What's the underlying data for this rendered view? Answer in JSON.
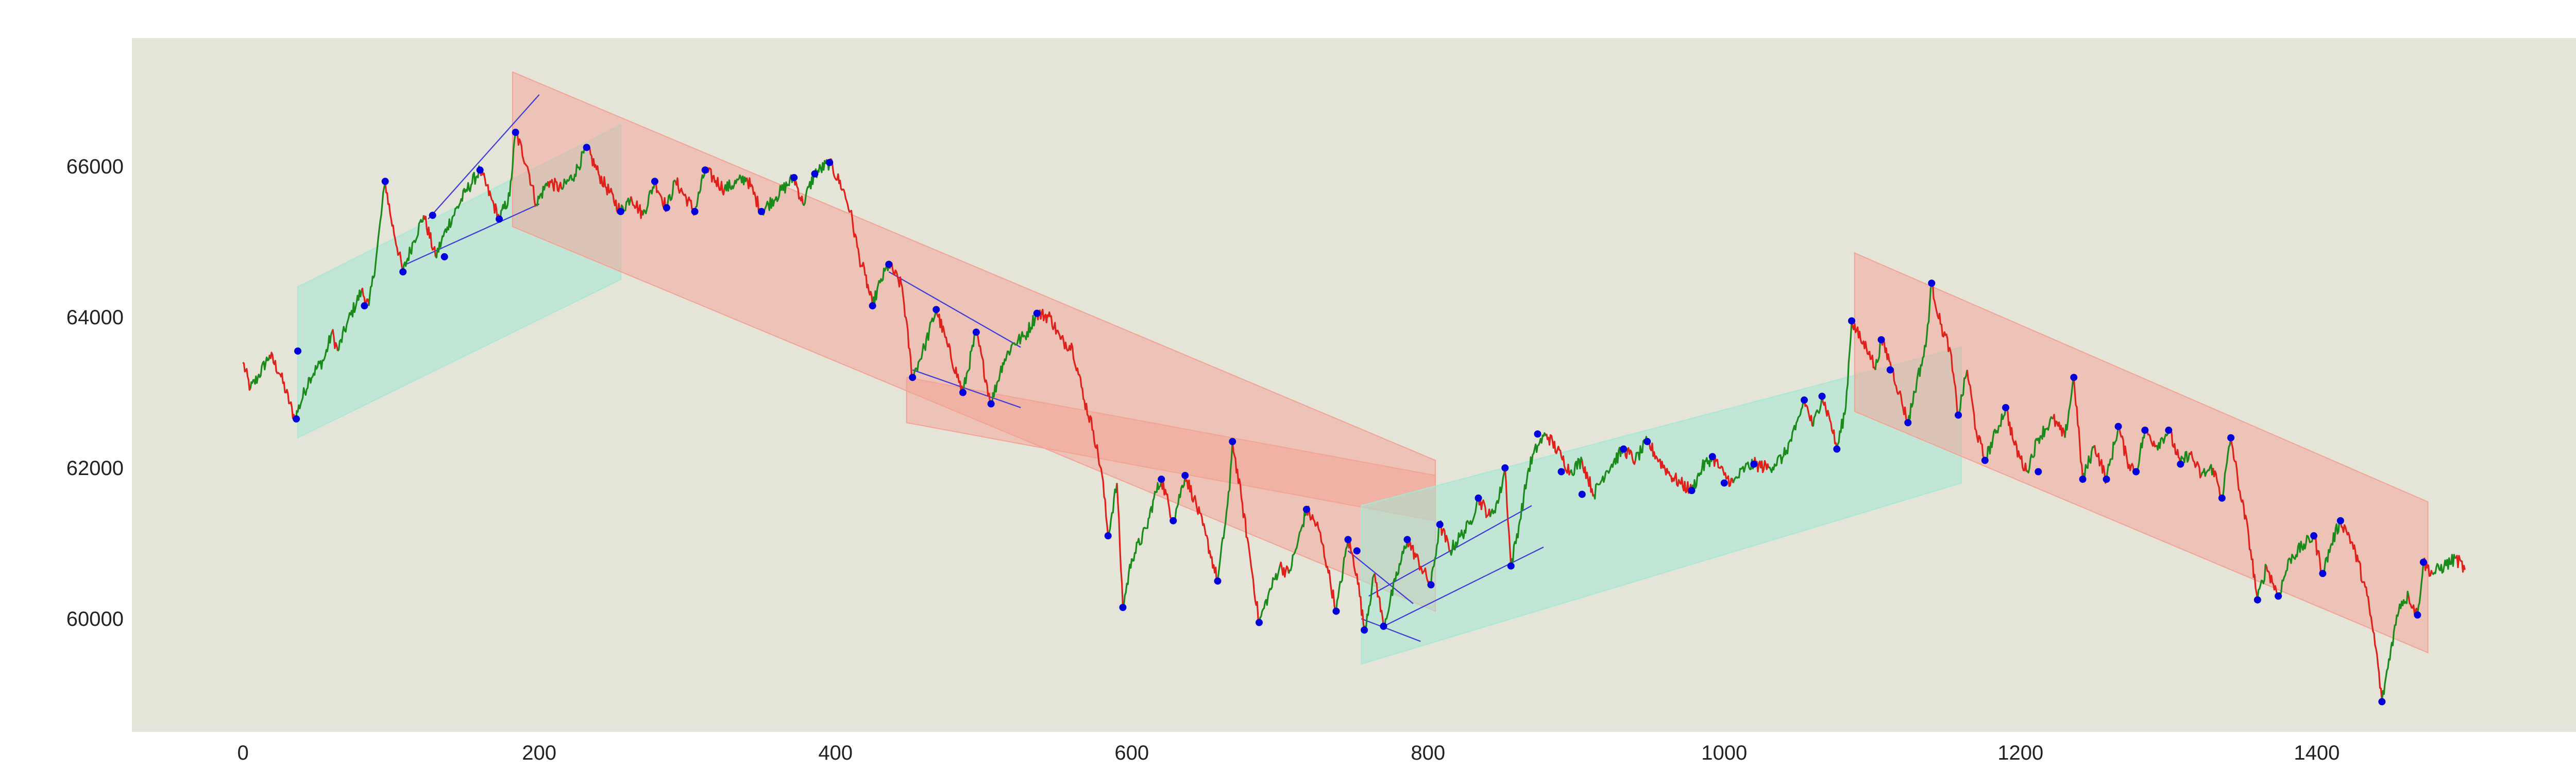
{
  "chart_data": {
    "type": "line",
    "subtype": "price series with swing-point markers and trend channels",
    "title": "",
    "xlabel": "",
    "ylabel": "",
    "xlim": [
      -75,
      1575
    ],
    "ylim": [
      58500,
      67700
    ],
    "xticks": [
      0,
      200,
      400,
      600,
      800,
      1000,
      1200,
      1400
    ],
    "yticks": [
      60000,
      62000,
      64000,
      66000
    ],
    "xtick_labels": [
      "0",
      "200",
      "400",
      "600",
      "800",
      "1000",
      "1200",
      "1400"
    ],
    "ytick_labels": [
      "60000",
      "62000",
      "64000",
      "66000"
    ],
    "grid": false,
    "legend": "none",
    "colors": {
      "plot_background": "#e4e4d8",
      "up_color": "#1a8a1a",
      "down_color": "#e0201a",
      "marker_color": "#0000dd",
      "pattern_line_color": "#3a3ad8",
      "bull_channel_fill": "#a6e8d6",
      "bear_channel_fill": "#f4a294"
    },
    "price_path": [
      [
        0,
        63400
      ],
      [
        5,
        63050
      ],
      [
        10,
        63200
      ],
      [
        18,
        63500
      ],
      [
        25,
        63250
      ],
      [
        35,
        62650
      ],
      [
        45,
        63200
      ],
      [
        55,
        63450
      ],
      [
        60,
        63800
      ],
      [
        64,
        63550
      ],
      [
        70,
        63900
      ],
      [
        80,
        64350
      ],
      [
        85,
        64150
      ],
      [
        90,
        64800
      ],
      [
        96,
        65800
      ],
      [
        100,
        65300
      ],
      [
        108,
        64600
      ],
      [
        115,
        65000
      ],
      [
        122,
        65350
      ],
      [
        130,
        64800
      ],
      [
        138,
        65200
      ],
      [
        150,
        65650
      ],
      [
        160,
        65950
      ],
      [
        168,
        65550
      ],
      [
        173,
        65300
      ],
      [
        180,
        65600
      ],
      [
        184,
        66450
      ],
      [
        192,
        66000
      ],
      [
        198,
        65500
      ],
      [
        206,
        65800
      ],
      [
        215,
        65700
      ],
      [
        224,
        65900
      ],
      [
        232,
        66250
      ],
      [
        240,
        65900
      ],
      [
        255,
        65400
      ],
      [
        262,
        65600
      ],
      [
        270,
        65350
      ],
      [
        278,
        65800
      ],
      [
        286,
        65450
      ],
      [
        292,
        65800
      ],
      [
        305,
        65400
      ],
      [
        312,
        65950
      ],
      [
        325,
        65700
      ],
      [
        340,
        65850
      ],
      [
        350,
        65400
      ],
      [
        360,
        65600
      ],
      [
        372,
        65850
      ],
      [
        378,
        65500
      ],
      [
        386,
        65900
      ],
      [
        396,
        66050
      ],
      [
        405,
        65700
      ],
      [
        410,
        65400
      ],
      [
        416,
        64800
      ],
      [
        420,
        64550
      ],
      [
        425,
        64150
      ],
      [
        430,
        64450
      ],
      [
        436,
        64700
      ],
      [
        445,
        64400
      ],
      [
        452,
        63200
      ],
      [
        460,
        63600
      ],
      [
        468,
        64100
      ],
      [
        476,
        63600
      ],
      [
        486,
        63000
      ],
      [
        495,
        63800
      ],
      [
        505,
        62850
      ],
      [
        513,
        63400
      ],
      [
        520,
        63650
      ],
      [
        528,
        63750
      ],
      [
        536,
        64050
      ],
      [
        545,
        64000
      ],
      [
        552,
        63700
      ],
      [
        560,
        63600
      ],
      [
        568,
        62900
      ],
      [
        574,
        62500
      ],
      [
        580,
        61900
      ],
      [
        584,
        61100
      ],
      [
        590,
        61800
      ],
      [
        594,
        60150
      ],
      [
        600,
        60800
      ],
      [
        610,
        61200
      ],
      [
        615,
        61600
      ],
      [
        620,
        61850
      ],
      [
        628,
        61300
      ],
      [
        636,
        61900
      ],
      [
        642,
        61600
      ],
      [
        650,
        61100
      ],
      [
        658,
        60500
      ],
      [
        666,
        61700
      ],
      [
        668,
        62350
      ],
      [
        674,
        61600
      ],
      [
        680,
        60800
      ],
      [
        686,
        59950
      ],
      [
        692,
        60300
      ],
      [
        700,
        60700
      ],
      [
        706,
        60600
      ],
      [
        712,
        61000
      ],
      [
        718,
        61450
      ],
      [
        726,
        61200
      ],
      [
        732,
        60700
      ],
      [
        738,
        60100
      ],
      [
        746,
        61050
      ],
      [
        752,
        60600
      ],
      [
        757,
        59850
      ],
      [
        764,
        60600
      ],
      [
        770,
        59900
      ],
      [
        778,
        60500
      ],
      [
        786,
        61050
      ],
      [
        795,
        60700
      ],
      [
        802,
        60450
      ],
      [
        808,
        61250
      ],
      [
        815,
        60900
      ],
      [
        822,
        61100
      ],
      [
        828,
        61250
      ],
      [
        834,
        61600
      ],
      [
        842,
        61350
      ],
      [
        848,
        61600
      ],
      [
        852,
        62000
      ],
      [
        856,
        60700
      ],
      [
        862,
        61300
      ],
      [
        868,
        62000
      ],
      [
        874,
        62300
      ],
      [
        880,
        62450
      ],
      [
        890,
        62150
      ],
      [
        896,
        61950
      ],
      [
        904,
        62100
      ],
      [
        912,
        61650
      ],
      [
        920,
        61950
      ],
      [
        932,
        62250
      ],
      [
        940,
        62100
      ],
      [
        948,
        62350
      ],
      [
        956,
        62100
      ],
      [
        964,
        61900
      ],
      [
        970,
        61800
      ],
      [
        978,
        61700
      ],
      [
        985,
        62000
      ],
      [
        992,
        62150
      ],
      [
        1000,
        61900
      ],
      [
        1006,
        61800
      ],
      [
        1014,
        62000
      ],
      [
        1020,
        62050
      ],
      [
        1030,
        62000
      ],
      [
        1040,
        62150
      ],
      [
        1048,
        62500
      ],
      [
        1054,
        62900
      ],
      [
        1060,
        62550
      ],
      [
        1066,
        62950
      ],
      [
        1072,
        62600
      ],
      [
        1076,
        62250
      ],
      [
        1082,
        62800
      ],
      [
        1086,
        63950
      ],
      [
        1092,
        63700
      ],
      [
        1098,
        63550
      ],
      [
        1102,
        63300
      ],
      [
        1106,
        63700
      ],
      [
        1112,
        63400
      ],
      [
        1118,
        63000
      ],
      [
        1124,
        62600
      ],
      [
        1130,
        63150
      ],
      [
        1136,
        63600
      ],
      [
        1140,
        64450
      ],
      [
        1146,
        63900
      ],
      [
        1152,
        63600
      ],
      [
        1158,
        62700
      ],
      [
        1164,
        63300
      ],
      [
        1170,
        62500
      ],
      [
        1176,
        62100
      ],
      [
        1184,
        62500
      ],
      [
        1190,
        62800
      ],
      [
        1196,
        62300
      ],
      [
        1204,
        61950
      ],
      [
        1212,
        62400
      ],
      [
        1222,
        62650
      ],
      [
        1230,
        62400
      ],
      [
        1236,
        63200
      ],
      [
        1242,
        61850
      ],
      [
        1250,
        62300
      ],
      [
        1258,
        61850
      ],
      [
        1266,
        62550
      ],
      [
        1272,
        62100
      ],
      [
        1278,
        61950
      ],
      [
        1284,
        62500
      ],
      [
        1292,
        62300
      ],
      [
        1300,
        62500
      ],
      [
        1308,
        62050
      ],
      [
        1314,
        62200
      ],
      [
        1322,
        61900
      ],
      [
        1330,
        62000
      ],
      [
        1336,
        61600
      ],
      [
        1342,
        62400
      ],
      [
        1348,
        61700
      ],
      [
        1354,
        61100
      ],
      [
        1360,
        60250
      ],
      [
        1366,
        60700
      ],
      [
        1374,
        60300
      ],
      [
        1382,
        60800
      ],
      [
        1390,
        60950
      ],
      [
        1398,
        61100
      ],
      [
        1404,
        60600
      ],
      [
        1410,
        61000
      ],
      [
        1416,
        61300
      ],
      [
        1422,
        61100
      ],
      [
        1428,
        60750
      ],
      [
        1434,
        60300
      ],
      [
        1440,
        59600
      ],
      [
        1444,
        58900
      ],
      [
        1450,
        59600
      ],
      [
        1456,
        60200
      ],
      [
        1462,
        60300
      ],
      [
        1468,
        60050
      ],
      [
        1472,
        60750
      ],
      [
        1478,
        60600
      ],
      [
        1486,
        60700
      ],
      [
        1494,
        60800
      ],
      [
        1500,
        60650
      ]
    ],
    "swing_points": [
      [
        36,
        62650
      ],
      [
        37,
        63550
      ],
      [
        82,
        64150
      ],
      [
        96,
        65800
      ],
      [
        108,
        64600
      ],
      [
        128,
        65350
      ],
      [
        136,
        64800
      ],
      [
        160,
        65950
      ],
      [
        173,
        65300
      ],
      [
        184,
        66450
      ],
      [
        232,
        66250
      ],
      [
        255,
        65400
      ],
      [
        278,
        65800
      ],
      [
        286,
        65450
      ],
      [
        305,
        65400
      ],
      [
        312,
        65950
      ],
      [
        350,
        65400
      ],
      [
        372,
        65850
      ],
      [
        386,
        65900
      ],
      [
        396,
        66050
      ],
      [
        425,
        64150
      ],
      [
        436,
        64700
      ],
      [
        452,
        63200
      ],
      [
        468,
        64100
      ],
      [
        486,
        63000
      ],
      [
        495,
        63800
      ],
      [
        505,
        62850
      ],
      [
        536,
        64050
      ],
      [
        584,
        61100
      ],
      [
        594,
        60150
      ],
      [
        620,
        61850
      ],
      [
        628,
        61300
      ],
      [
        636,
        61900
      ],
      [
        658,
        60500
      ],
      [
        668,
        62350
      ],
      [
        686,
        59950
      ],
      [
        718,
        61450
      ],
      [
        738,
        60100
      ],
      [
        746,
        61050
      ],
      [
        752,
        60900
      ],
      [
        757,
        59850
      ],
      [
        770,
        59900
      ],
      [
        786,
        61050
      ],
      [
        802,
        60450
      ],
      [
        808,
        61250
      ],
      [
        834,
        61600
      ],
      [
        852,
        62000
      ],
      [
        856,
        60700
      ],
      [
        874,
        62450
      ],
      [
        890,
        61950
      ],
      [
        904,
        61650
      ],
      [
        932,
        62250
      ],
      [
        948,
        62350
      ],
      [
        978,
        61700
      ],
      [
        992,
        62150
      ],
      [
        1000,
        61800
      ],
      [
        1020,
        62050
      ],
      [
        1054,
        62900
      ],
      [
        1066,
        62950
      ],
      [
        1076,
        62250
      ],
      [
        1086,
        63950
      ],
      [
        1106,
        63700
      ],
      [
        1112,
        63300
      ],
      [
        1124,
        62600
      ],
      [
        1140,
        64450
      ],
      [
        1158,
        62700
      ],
      [
        1176,
        62100
      ],
      [
        1190,
        62800
      ],
      [
        1212,
        61950
      ],
      [
        1236,
        63200
      ],
      [
        1242,
        61850
      ],
      [
        1258,
        61850
      ],
      [
        1266,
        62550
      ],
      [
        1278,
        61950
      ],
      [
        1284,
        62500
      ],
      [
        1300,
        62500
      ],
      [
        1308,
        62050
      ],
      [
        1336,
        61600
      ],
      [
        1342,
        62400
      ],
      [
        1360,
        60250
      ],
      [
        1374,
        60300
      ],
      [
        1398,
        61100
      ],
      [
        1404,
        60600
      ],
      [
        1416,
        61300
      ],
      [
        1444,
        58900
      ],
      [
        1468,
        60050
      ],
      [
        1472,
        60750
      ]
    ],
    "channels": [
      {
        "kind": "bullish",
        "polygon": [
          [
            37,
            62400
          ],
          [
            37,
            64400
          ],
          [
            255,
            66550
          ],
          [
            255,
            64500
          ]
        ]
      },
      {
        "kind": "bearish",
        "polygon": [
          [
            182,
            67250
          ],
          [
            805,
            62100
          ],
          [
            805,
            60100
          ],
          [
            182,
            65200
          ]
        ]
      },
      {
        "kind": "bearish",
        "polygon": [
          [
            448,
            62600
          ],
          [
            448,
            63200
          ],
          [
            805,
            61900
          ],
          [
            805,
            61300
          ]
        ]
      },
      {
        "kind": "bullish",
        "polygon": [
          [
            755,
            59400
          ],
          [
            755,
            61500
          ],
          [
            1160,
            63600
          ],
          [
            1160,
            61800
          ]
        ]
      },
      {
        "kind": "bearish",
        "polygon": [
          [
            1088,
            64850
          ],
          [
            1088,
            62750
          ],
          [
            1475,
            59550
          ],
          [
            1475,
            61550
          ]
        ]
      }
    ],
    "pattern_lines": [
      [
        [
          110,
          64700
        ],
        [
          200,
          65500
        ]
      ],
      [
        [
          125,
          65300
        ],
        [
          200,
          66950
        ]
      ],
      [
        [
          436,
          64600
        ],
        [
          525,
          63600
        ]
      ],
      [
        [
          452,
          63300
        ],
        [
          525,
          62800
        ]
      ],
      [
        [
          746,
          60900
        ],
        [
          790,
          60200
        ]
      ],
      [
        [
          755,
          60000
        ],
        [
          795,
          59700
        ]
      ],
      [
        [
          760,
          60300
        ],
        [
          870,
          61500
        ]
      ],
      [
        [
          770,
          59900
        ],
        [
          878,
          60950
        ]
      ]
    ]
  }
}
